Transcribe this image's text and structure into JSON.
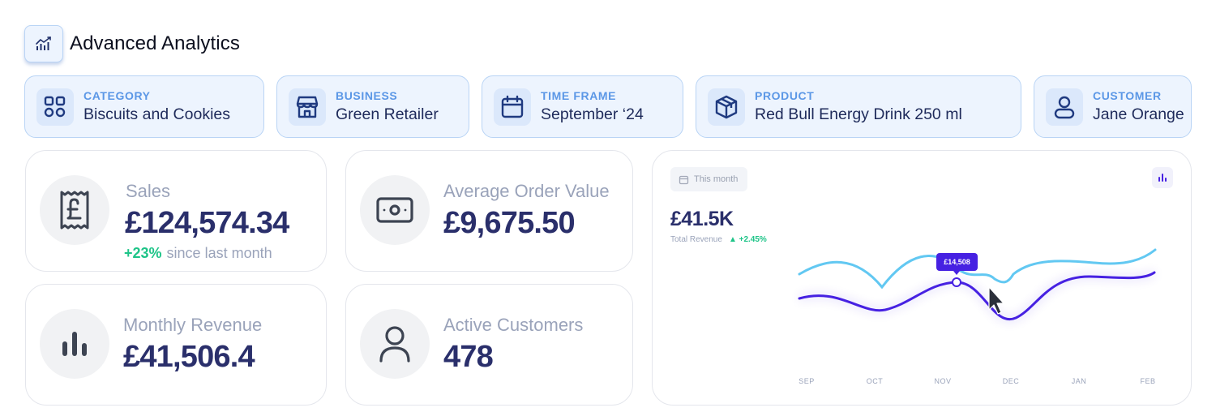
{
  "header": {
    "title": "Advanced Analytics",
    "icon": "analytics-icon"
  },
  "filters": [
    {
      "label": "CATEGORY",
      "value": "Biscuits and Cookies",
      "icon": "category-grid-icon"
    },
    {
      "label": "BUSINESS",
      "value": "Green Retailer",
      "icon": "store-icon"
    },
    {
      "label": "TIME FRAME",
      "value": "September ‘24",
      "icon": "calendar-icon"
    },
    {
      "label": "PRODUCT",
      "value": "Red Bull Energy Drink 250 ml",
      "icon": "box-icon"
    },
    {
      "label": "CUSTOMER",
      "value": "Jane Orange",
      "icon": "user-icon"
    }
  ],
  "kpis": {
    "sales": {
      "label": "Sales",
      "value": "£124,574.34",
      "change": "+23%",
      "change_text": "since last month",
      "icon": "receipt-pound-icon"
    },
    "aov": {
      "label": "Average Order Value",
      "value": "£9,675.50",
      "icon": "banknote-icon"
    },
    "monthly_revenue": {
      "label": "Monthly Revenue",
      "value": "£41,506.4",
      "icon": "bar-chart-icon"
    },
    "active_customers": {
      "label": "Active Customers",
      "value": "478",
      "icon": "person-icon"
    }
  },
  "revenue_chart": {
    "period_label": "This month",
    "total": "£41.5K",
    "total_label": "Total Revenue",
    "delta": "+2.45%",
    "tooltip": "£14,508",
    "months": [
      "SEP",
      "OCT",
      "NOV",
      "DEC",
      "JAN",
      "FEB"
    ],
    "colors": {
      "primary": "#4621e2",
      "secondary": "#62c8f2",
      "positive": "#1ec488"
    }
  }
}
